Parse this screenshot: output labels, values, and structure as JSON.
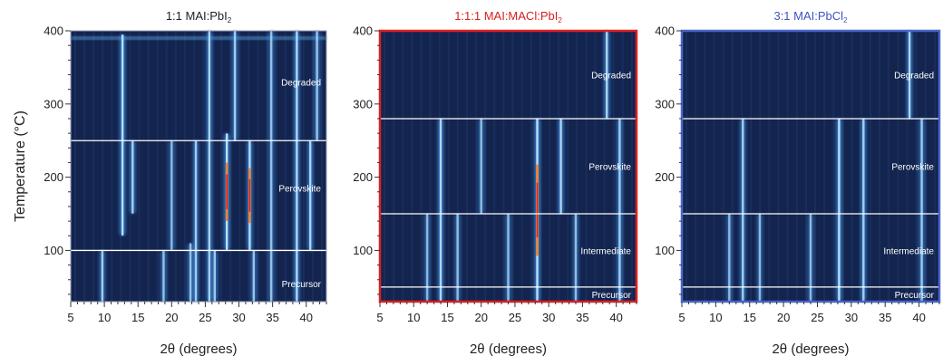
{
  "chart_data": [
    {
      "type": "heatmap",
      "title": "1:1 MAI:PbI",
      "title_subscript": "2",
      "title_color": "#222222",
      "frame_color": "#9aa3b5",
      "ylabel": "Temperature (°C)",
      "xlabel": "2θ (degrees)",
      "x_ticks": [
        "5",
        "10",
        "15",
        "20",
        "25",
        "30",
        "35",
        "40"
      ],
      "y_ticks": [
        "100",
        "200",
        "300",
        "400"
      ],
      "xlim": [
        5,
        43
      ],
      "ylim": [
        30,
        400
      ],
      "phase_boundaries": [
        100,
        250
      ],
      "phases": [
        {
          "label": "Degraded",
          "temperature": 330
        },
        {
          "label": "Perovskite",
          "temperature": 185
        },
        {
          "label": "Precursor",
          "temperature": 55
        }
      ],
      "peaks": [
        {
          "x": 9.7,
          "t0": 30,
          "t1": 100,
          "i": 0.7
        },
        {
          "x": 12.7,
          "t0": 120,
          "t1": 395,
          "i": 0.95
        },
        {
          "x": 14.2,
          "t0": 150,
          "t1": 250,
          "i": 0.75
        },
        {
          "x": 18.8,
          "t0": 30,
          "t1": 100,
          "i": 0.55
        },
        {
          "x": 20.0,
          "t0": 100,
          "t1": 250,
          "i": 0.45
        },
        {
          "x": 22.8,
          "t0": 30,
          "t1": 110,
          "i": 0.6
        },
        {
          "x": 23.6,
          "t0": 30,
          "t1": 250,
          "i": 0.7
        },
        {
          "x": 25.6,
          "t0": 30,
          "t1": 400,
          "i": 0.8
        },
        {
          "x": 26.4,
          "t0": 30,
          "t1": 100,
          "i": 0.65
        },
        {
          "x": 28.2,
          "t0": 100,
          "t1": 260,
          "i": 1.0,
          "hot": true
        },
        {
          "x": 29.4,
          "t0": 250,
          "t1": 400,
          "i": 0.7
        },
        {
          "x": 31.6,
          "t0": 100,
          "t1": 250,
          "i": 0.9,
          "hot": true
        },
        {
          "x": 32.2,
          "t0": 30,
          "t1": 100,
          "i": 0.6
        },
        {
          "x": 34.8,
          "t0": 30,
          "t1": 400,
          "i": 0.55
        },
        {
          "x": 38.6,
          "t0": 30,
          "t1": 400,
          "i": 0.85
        },
        {
          "x": 40.6,
          "t0": 100,
          "t1": 250,
          "i": 0.8
        },
        {
          "x": 41.6,
          "t0": 250,
          "t1": 400,
          "i": 0.6
        }
      ],
      "top_band": 390
    },
    {
      "type": "heatmap",
      "title": "1:1:1 MAI:MACl:PbI",
      "title_subscript": "2",
      "title_color": "#d42020",
      "frame_color": "#e02020",
      "ylabel": "",
      "xlabel": "2θ (degrees)",
      "x_ticks": [
        "5",
        "10",
        "15",
        "20",
        "25",
        "30",
        "35",
        "40"
      ],
      "y_ticks": [
        "100",
        "200",
        "300",
        "400"
      ],
      "xlim": [
        5,
        43
      ],
      "ylim": [
        30,
        400
      ],
      "phase_boundaries": [
        50,
        150,
        280
      ],
      "phases": [
        {
          "label": "Degraded",
          "temperature": 340
        },
        {
          "label": "Perovskite",
          "temperature": 215
        },
        {
          "label": "Intermediate",
          "temperature": 100
        },
        {
          "label": "Precursor",
          "temperature": 40
        }
      ],
      "peaks": [
        {
          "x": 12.0,
          "t0": 30,
          "t1": 150,
          "i": 0.45
        },
        {
          "x": 14.0,
          "t0": 30,
          "t1": 280,
          "i": 0.85
        },
        {
          "x": 16.5,
          "t0": 30,
          "t1": 150,
          "i": 0.5
        },
        {
          "x": 20.0,
          "t0": 150,
          "t1": 280,
          "i": 0.5
        },
        {
          "x": 24.0,
          "t0": 30,
          "t1": 150,
          "i": 0.5
        },
        {
          "x": 28.3,
          "t0": 30,
          "t1": 280,
          "i": 1.0,
          "hot": true
        },
        {
          "x": 31.8,
          "t0": 150,
          "t1": 280,
          "i": 0.8
        },
        {
          "x": 34.0,
          "t0": 30,
          "t1": 150,
          "i": 0.5
        },
        {
          "x": 38.6,
          "t0": 280,
          "t1": 400,
          "i": 0.8
        },
        {
          "x": 40.5,
          "t0": 30,
          "t1": 280,
          "i": 0.7
        }
      ],
      "top_band": 0
    },
    {
      "type": "heatmap",
      "title": "3:1 MAI:PbCl",
      "title_subscript": "2",
      "title_color": "#3a55c4",
      "frame_color": "#4a66cc",
      "ylabel": "",
      "xlabel": "2θ (degrees)",
      "x_ticks": [
        "5",
        "10",
        "15",
        "20",
        "25",
        "30",
        "35",
        "40"
      ],
      "y_ticks": [
        "100",
        "200",
        "300",
        "400"
      ],
      "xlim": [
        5,
        43
      ],
      "ylim": [
        30,
        400
      ],
      "phase_boundaries": [
        50,
        150,
        280
      ],
      "phases": [
        {
          "label": "Degraded",
          "temperature": 340
        },
        {
          "label": "Perovskite",
          "temperature": 215
        },
        {
          "label": "Intermediate",
          "temperature": 100
        },
        {
          "label": "Precursor",
          "temperature": 40
        }
      ],
      "peaks": [
        {
          "x": 12.0,
          "t0": 30,
          "t1": 150,
          "i": 0.45
        },
        {
          "x": 14.0,
          "t0": 30,
          "t1": 280,
          "i": 0.7
        },
        {
          "x": 16.5,
          "t0": 30,
          "t1": 150,
          "i": 0.45
        },
        {
          "x": 24.0,
          "t0": 30,
          "t1": 150,
          "i": 0.45
        },
        {
          "x": 28.2,
          "t0": 30,
          "t1": 280,
          "i": 0.95
        },
        {
          "x": 31.8,
          "t0": 30,
          "t1": 280,
          "i": 0.75
        },
        {
          "x": 38.6,
          "t0": 280,
          "t1": 400,
          "i": 0.8
        },
        {
          "x": 40.4,
          "t0": 30,
          "t1": 280,
          "i": 0.65
        }
      ],
      "top_band": 0
    }
  ]
}
